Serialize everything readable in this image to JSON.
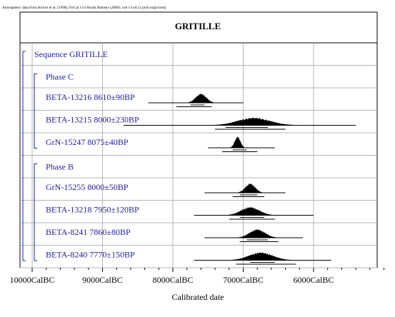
{
  "chart_data": {
    "type": "radiocarbon-multiplot",
    "header_note": "Atmospheric data from Stuiver et al. (1998); OxCal v3.6 Bronk Ramsey (2000); cub r:4 sd:12 prob usp[chron]",
    "title": "GRITILLE",
    "xlabel": "Calibrated date",
    "x_ticks": [
      {
        "value": -10000,
        "label": "10000CalBC"
      },
      {
        "value": -9000,
        "label": "9000CalBC"
      },
      {
        "value": -8000,
        "label": "8000CalBC"
      },
      {
        "value": -7000,
        "label": "7000CalBC"
      },
      {
        "value": -6000,
        "label": "6000CalBC"
      }
    ],
    "xlim": [
      -10000,
      -5000
    ],
    "grid": true,
    "sequence_label": "Sequence GRITILLE",
    "phases": [
      {
        "label": "Phase C",
        "dates": [
          {
            "label": "BETA-13216  8610±90BP",
            "range_1sigma": [
              -7750,
              -7550
            ],
            "range_2sigma": [
              -7950,
              -7450
            ],
            "mode": -7600,
            "spread": 75,
            "raw_range": [
              -8350,
              -7000
            ]
          },
          {
            "label": "BETA-13215  8000±230BP",
            "range_1sigma": [
              -7250,
              -6650
            ],
            "range_2sigma": [
              -7400,
              -6400
            ],
            "mode": -6850,
            "spread": 230,
            "raw_range": [
              -8700,
              -5400
            ]
          },
          {
            "label": "GrN-15247  8075±40BP",
            "range_1sigma": [
              -7150,
              -6950
            ],
            "range_2sigma": [
              -7300,
              -6800
            ],
            "mode": -7080,
            "spread": 40,
            "raw_range": [
              -7500,
              -6550
            ]
          }
        ]
      },
      {
        "label": "Phase B",
        "dates": [
          {
            "label": "GrN-15255  8000±50BP",
            "range_1sigma": [
              -7050,
              -6800
            ],
            "range_2sigma": [
              -7150,
              -6700
            ],
            "mode": -6900,
            "spread": 70,
            "raw_range": [
              -7550,
              -6400
            ]
          },
          {
            "label": "BETA-13218  7950±120BP",
            "range_1sigma": [
              -7050,
              -6700
            ],
            "range_2sigma": [
              -7200,
              -6550
            ],
            "mode": -6900,
            "spread": 130,
            "raw_range": [
              -7700,
              -6000
            ]
          },
          {
            "label": "BETA-8241  7860±80BP",
            "range_1sigma": [
              -6950,
              -6650
            ],
            "range_2sigma": [
              -7050,
              -6500
            ],
            "mode": -6800,
            "spread": 110,
            "raw_range": [
              -7550,
              -6150
            ]
          },
          {
            "label": "BETA-8240  7770±150BP",
            "range_1sigma": [
              -6900,
              -6550
            ],
            "range_2sigma": [
              -7100,
              -6250
            ],
            "mode": -6750,
            "spread": 170,
            "raw_range": [
              -7700,
              -5750
            ]
          }
        ]
      }
    ]
  }
}
